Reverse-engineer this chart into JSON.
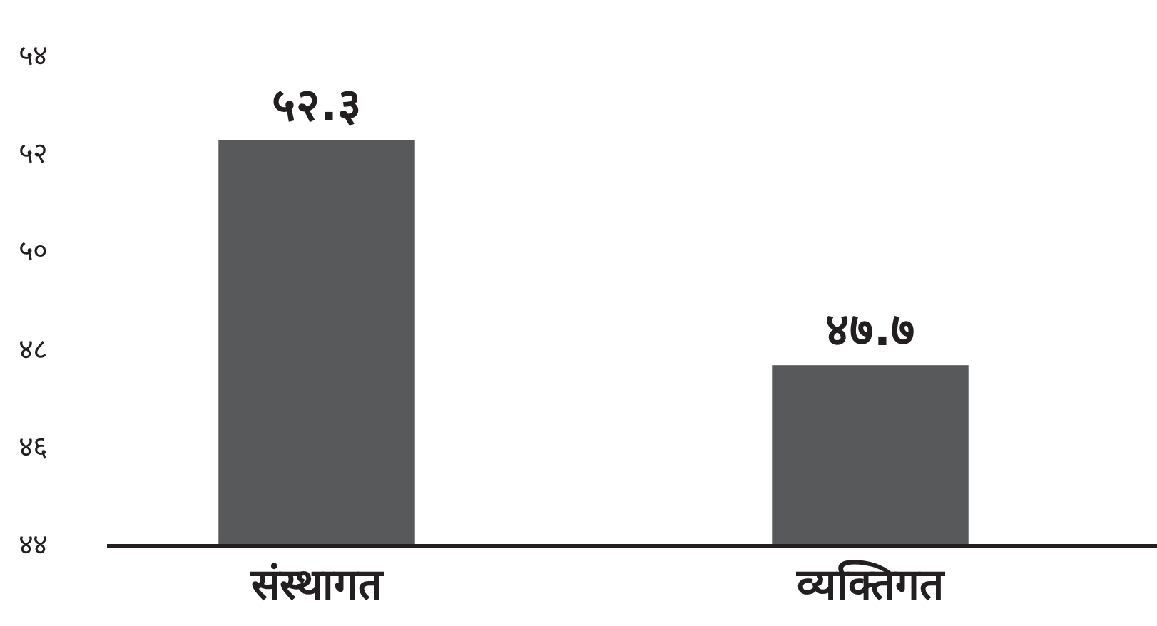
{
  "chart_data": {
    "type": "bar",
    "categories": [
      "संस्थागत",
      "व्यक्तिगत"
    ],
    "values": [
      52.3,
      47.7
    ],
    "value_labels": [
      "५२.३",
      "४७.७"
    ],
    "color": "#58595b",
    "ylim": [
      44,
      54
    ],
    "yticks": [
      {
        "value": 44,
        "label": "४४"
      },
      {
        "value": 46,
        "label": "४६"
      },
      {
        "value": 48,
        "label": "४८"
      },
      {
        "value": 50,
        "label": "५०"
      },
      {
        "value": 52,
        "label": "५२"
      },
      {
        "value": 54,
        "label": "५४"
      }
    ]
  }
}
